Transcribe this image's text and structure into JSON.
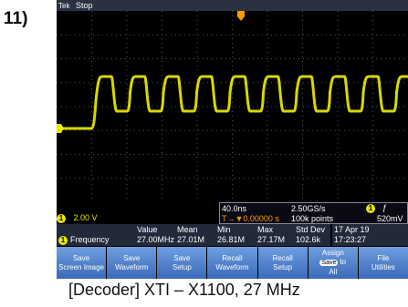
{
  "label": "11)",
  "status_bar": {
    "brand": "Tek",
    "state": "Stop"
  },
  "channel": {
    "badge": "1",
    "scale": "2.00 V"
  },
  "acquisition": {
    "time_scale": "40.0ns",
    "sample_rate": "2.50GS/s",
    "trigger_badge": "1",
    "trigger_slope": "ƒ",
    "trigger_position": "T→▼0.00000 s",
    "record_length": "100k points",
    "trigger_level": "520mV"
  },
  "measurements": {
    "headers": [
      "Value",
      "Mean",
      "Min",
      "Max",
      "Std Dev"
    ],
    "badge": "1",
    "name": "Frequency",
    "values": [
      "27.00MHz",
      "27.01M",
      "26.81M",
      "27.17M",
      "102.6k"
    ]
  },
  "datetime": {
    "date": "17 Apr 19",
    "time": "17:23:27"
  },
  "buttons": [
    {
      "lines": [
        "Save",
        "Screen Image"
      ]
    },
    {
      "lines": [
        "Save",
        "Waveform"
      ]
    },
    {
      "lines": [
        "Save",
        "Setup"
      ]
    },
    {
      "lines": [
        "Recall",
        "Waveform"
      ]
    },
    {
      "lines": [
        "Recall",
        "Setup"
      ]
    },
    {
      "lines": [
        "Assign",
        "Save",
        "to",
        "All"
      ]
    },
    {
      "lines": [
        "File",
        "Utilities"
      ]
    }
  ],
  "caption": "[Decoder] XTI – X1100, 27 MHz"
}
